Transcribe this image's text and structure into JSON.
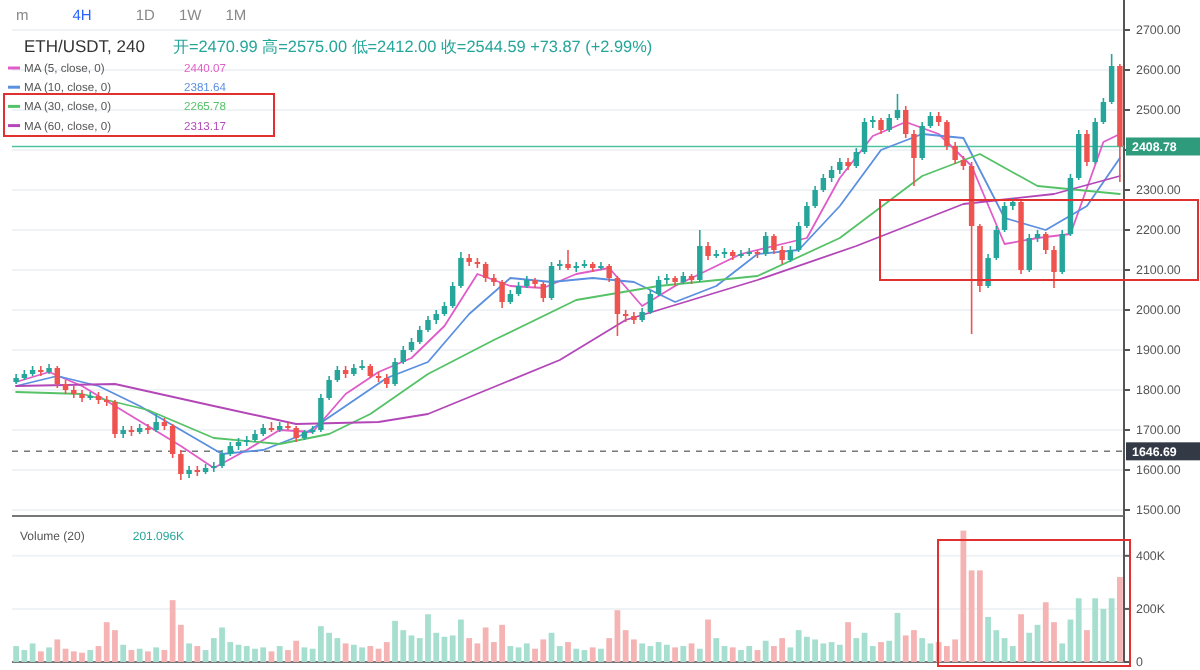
{
  "chart_data": [
    {
      "type": "candlestick",
      "title": "ETH/USDT, 240",
      "subtitle": "开=2470.99 高=2575.00 低=2412.00 收=2544.59 +73.87 (+2.99%)",
      "categories": [
        null,
        null,
        null,
        null,
        null,
        null,
        null,
        null,
        null,
        null,
        null,
        null,
        null,
        null,
        null,
        null,
        null,
        null,
        null,
        null,
        null,
        null,
        null,
        null,
        null,
        null,
        null,
        null,
        null,
        null,
        null,
        null,
        null,
        null,
        null,
        null,
        null,
        null,
        null,
        null,
        null,
        null,
        null,
        null,
        null,
        null,
        null,
        null,
        null,
        null,
        null,
        null,
        null,
        null,
        null,
        null,
        null,
        null,
        null,
        null,
        null,
        null,
        null,
        null,
        null,
        null,
        null,
        null,
        null,
        null,
        null,
        null,
        null,
        null,
        null,
        null,
        null,
        null,
        null,
        null,
        null,
        null,
        null,
        null,
        null,
        null,
        null,
        null,
        null,
        null,
        null,
        null,
        null,
        null,
        null,
        null,
        null,
        null,
        null,
        null,
        null,
        null,
        null,
        null,
        null,
        null,
        null,
        null,
        null,
        null,
        null,
        null,
        null,
        null,
        null,
        null,
        null,
        null,
        null,
        null,
        null,
        null,
        null,
        null,
        null,
        null,
        null,
        null,
        null,
        null,
        null,
        null,
        null,
        null,
        null
      ],
      "ohlc": [
        [
          1820,
          1840,
          1815,
          1830
        ],
        [
          1830,
          1850,
          1825,
          1840
        ],
        [
          1840,
          1860,
          1835,
          1850
        ],
        [
          1850,
          1860,
          1835,
          1845
        ],
        [
          1845,
          1865,
          1840,
          1855
        ],
        [
          1855,
          1860,
          1805,
          1815
        ],
        [
          1815,
          1825,
          1790,
          1800
        ],
        [
          1800,
          1810,
          1780,
          1790
        ],
        [
          1790,
          1800,
          1770,
          1780
        ],
        [
          1780,
          1795,
          1775,
          1785
        ],
        [
          1785,
          1795,
          1765,
          1775
        ],
        [
          1775,
          1785,
          1760,
          1770
        ],
        [
          1770,
          1775,
          1680,
          1690
        ],
        [
          1690,
          1710,
          1680,
          1700
        ],
        [
          1700,
          1710,
          1685,
          1695
        ],
        [
          1695,
          1715,
          1690,
          1705
        ],
        [
          1705,
          1715,
          1690,
          1700
        ],
        [
          1700,
          1740,
          1695,
          1720
        ],
        [
          1720,
          1730,
          1700,
          1710
        ],
        [
          1710,
          1715,
          1630,
          1640
        ],
        [
          1640,
          1650,
          1575,
          1590
        ],
        [
          1590,
          1610,
          1580,
          1600
        ],
        [
          1600,
          1610,
          1585,
          1595
        ],
        [
          1595,
          1615,
          1590,
          1605
        ],
        [
          1605,
          1620,
          1595,
          1610
        ],
        [
          1610,
          1650,
          1605,
          1640
        ],
        [
          1640,
          1670,
          1635,
          1660
        ],
        [
          1660,
          1680,
          1650,
          1670
        ],
        [
          1670,
          1685,
          1660,
          1675
        ],
        [
          1675,
          1700,
          1670,
          1690
        ],
        [
          1690,
          1715,
          1685,
          1705
        ],
        [
          1705,
          1720,
          1695,
          1700
        ],
        [
          1700,
          1720,
          1695,
          1710
        ],
        [
          1710,
          1720,
          1700,
          1705
        ],
        [
          1705,
          1710,
          1670,
          1680
        ],
        [
          1680,
          1700,
          1675,
          1695
        ],
        [
          1695,
          1710,
          1690,
          1700
        ],
        [
          1700,
          1790,
          1695,
          1780
        ],
        [
          1780,
          1835,
          1775,
          1825
        ],
        [
          1825,
          1860,
          1820,
          1850
        ],
        [
          1850,
          1860,
          1830,
          1840
        ],
        [
          1840,
          1865,
          1835,
          1855
        ],
        [
          1855,
          1875,
          1850,
          1860
        ],
        [
          1860,
          1865,
          1830,
          1835
        ],
        [
          1835,
          1845,
          1820,
          1830
        ],
        [
          1830,
          1840,
          1805,
          1815
        ],
        [
          1815,
          1880,
          1810,
          1870
        ],
        [
          1870,
          1910,
          1865,
          1900
        ],
        [
          1900,
          1930,
          1895,
          1920
        ],
        [
          1920,
          1960,
          1915,
          1950
        ],
        [
          1950,
          1985,
          1945,
          1975
        ],
        [
          1975,
          2000,
          1965,
          1990
        ],
        [
          1990,
          2020,
          1985,
          2010
        ],
        [
          2010,
          2070,
          2005,
          2060
        ],
        [
          2060,
          2145,
          2055,
          2130
        ],
        [
          2130,
          2140,
          2110,
          2120
        ],
        [
          2120,
          2130,
          2105,
          2115
        ],
        [
          2115,
          2120,
          2070,
          2080
        ],
        [
          2080,
          2090,
          2060,
          2070
        ],
        [
          2070,
          2075,
          2005,
          2020
        ],
        [
          2020,
          2050,
          2015,
          2040
        ],
        [
          2040,
          2070,
          2035,
          2060
        ],
        [
          2060,
          2085,
          2055,
          2075
        ],
        [
          2075,
          2080,
          2055,
          2065
        ],
        [
          2065,
          2070,
          2020,
          2030
        ],
        [
          2030,
          2120,
          2025,
          2110
        ],
        [
          2110,
          2125,
          2100,
          2115
        ],
        [
          2115,
          2150,
          2100,
          2105
        ],
        [
          2105,
          2120,
          2095,
          2110
        ],
        [
          2110,
          2125,
          2105,
          2115
        ],
        [
          2115,
          2120,
          2095,
          2105
        ],
        [
          2105,
          2120,
          2100,
          2110
        ],
        [
          2110,
          2115,
          2070,
          2080
        ],
        [
          2080,
          2085,
          1935,
          1990
        ],
        [
          1990,
          2000,
          1970,
          1985
        ],
        [
          1985,
          1995,
          1965,
          1975
        ],
        [
          1975,
          2005,
          1970,
          1995
        ],
        [
          1995,
          2050,
          1990,
          2040
        ],
        [
          2040,
          2085,
          2035,
          2075
        ],
        [
          2075,
          2090,
          2065,
          2080
        ],
        [
          2080,
          2085,
          2060,
          2070
        ],
        [
          2070,
          2095,
          2065,
          2085
        ],
        [
          2085,
          2090,
          2065,
          2075
        ],
        [
          2075,
          2200,
          2070,
          2160
        ],
        [
          2160,
          2170,
          2125,
          2135
        ],
        [
          2135,
          2150,
          2130,
          2140
        ],
        [
          2140,
          2155,
          2130,
          2145
        ],
        [
          2145,
          2150,
          2125,
          2135
        ],
        [
          2135,
          2150,
          2130,
          2140
        ],
        [
          2140,
          2155,
          2135,
          2145
        ],
        [
          2145,
          2150,
          2130,
          2140
        ],
        [
          2140,
          2195,
          2135,
          2185
        ],
        [
          2185,
          2190,
          2140,
          2150
        ],
        [
          2150,
          2160,
          2115,
          2125
        ],
        [
          2125,
          2160,
          2120,
          2150
        ],
        [
          2150,
          2220,
          2145,
          2210
        ],
        [
          2210,
          2270,
          2205,
          2260
        ],
        [
          2260,
          2310,
          2255,
          2300
        ],
        [
          2300,
          2340,
          2295,
          2330
        ],
        [
          2330,
          2360,
          2320,
          2350
        ],
        [
          2350,
          2380,
          2340,
          2370
        ],
        [
          2370,
          2380,
          2350,
          2360
        ],
        [
          2360,
          2405,
          2355,
          2395
        ],
        [
          2395,
          2480,
          2390,
          2470
        ],
        [
          2470,
          2485,
          2455,
          2475
        ],
        [
          2475,
          2480,
          2440,
          2450
        ],
        [
          2450,
          2490,
          2445,
          2480
        ],
        [
          2480,
          2540,
          2475,
          2500
        ],
        [
          2500,
          2510,
          2430,
          2440
        ],
        [
          2440,
          2450,
          2310,
          2380
        ],
        [
          2380,
          2470,
          2375,
          2460
        ],
        [
          2460,
          2495,
          2455,
          2485
        ],
        [
          2485,
          2495,
          2460,
          2470
        ],
        [
          2470,
          2475,
          2400,
          2410
        ],
        [
          2410,
          2420,
          2365,
          2375
        ],
        [
          2375,
          2385,
          2350,
          2360
        ],
        [
          2360,
          2370,
          1940,
          2210
        ],
        [
          2210,
          2215,
          2045,
          2060
        ],
        [
          2060,
          2140,
          2055,
          2130
        ],
        [
          2130,
          2210,
          2125,
          2200
        ],
        [
          2200,
          2270,
          2195,
          2260
        ],
        [
          2260,
          2280,
          2250,
          2270
        ],
        [
          2270,
          2275,
          2090,
          2100
        ],
        [
          2100,
          2190,
          2095,
          2180
        ],
        [
          2180,
          2200,
          2170,
          2190
        ],
        [
          2190,
          2195,
          2140,
          2150
        ],
        [
          2150,
          2160,
          2055,
          2095
        ],
        [
          2095,
          2200,
          2090,
          2190
        ],
        [
          2190,
          2340,
          2185,
          2330
        ],
        [
          2330,
          2450,
          2325,
          2440
        ],
        [
          2440,
          2450,
          2360,
          2370
        ],
        [
          2370,
          2480,
          2365,
          2470
        ],
        [
          2470,
          2530,
          2465,
          2520
        ],
        [
          2520,
          2640,
          2515,
          2610
        ],
        [
          2610,
          2615,
          2320,
          2409
        ]
      ],
      "series": [
        {
          "name": "MA (5, close, 0)",
          "type": "line",
          "color": "#e05cc8",
          "values": [
            1820,
            null,
            null,
            null,
            1845,
            null,
            null,
            null,
            1810,
            null,
            null,
            null,
            1760,
            null,
            null,
            null,
            1710,
            null,
            null,
            null,
            1660,
            null,
            null,
            null,
            1605,
            null,
            null,
            null,
            1650,
            null,
            null,
            null,
            1700,
            null,
            null,
            null,
            1695,
            null,
            null,
            null,
            1790,
            null,
            null,
            null,
            1845,
            null,
            null,
            null,
            1880,
            null,
            null,
            null,
            1960,
            null,
            null,
            null,
            2090,
            null,
            null,
            null,
            2060,
            null,
            null,
            null,
            2055,
            null,
            null,
            null,
            2090,
            null,
            null,
            null,
            2105,
            null,
            null,
            null,
            2010,
            null,
            null,
            null,
            2060,
            null,
            null,
            null,
            2100,
            null,
            null,
            null,
            2140,
            null,
            null,
            null,
            2160,
            null,
            null,
            null,
            2180,
            null,
            null,
            null,
            2330,
            null,
            null,
            null,
            2435,
            null,
            null,
            null,
            2470,
            null,
            null,
            null,
            2440,
            null,
            null,
            null,
            2360,
            null,
            null,
            null,
            2165,
            null,
            null,
            null,
            2180,
            null,
            null,
            null,
            2190,
            null,
            null,
            null,
            2420,
            null,
            2440
          ]
        },
        {
          "name": "MA (10, close, 0)",
          "type": "line",
          "color": "#5b8fe0",
          "values": [
            1810,
            null,
            null,
            null,
            null,
            1835,
            null,
            null,
            null,
            null,
            1810,
            null,
            null,
            null,
            null,
            1760,
            null,
            null,
            null,
            null,
            1700,
            null,
            null,
            null,
            null,
            1640,
            null,
            null,
            null,
            null,
            1650,
            null,
            null,
            null,
            null,
            1690,
            null,
            null,
            null,
            null,
            1760,
            null,
            null,
            null,
            null,
            1830,
            null,
            null,
            null,
            null,
            1870,
            null,
            null,
            null,
            null,
            1990,
            null,
            null,
            null,
            null,
            2080,
            null,
            null,
            null,
            null,
            2070,
            null,
            null,
            null,
            null,
            2080,
            null,
            null,
            null,
            null,
            2070,
            null,
            null,
            null,
            null,
            2020,
            null,
            null,
            null,
            null,
            2060,
            null,
            null,
            null,
            null,
            2140,
            null,
            null,
            null,
            null,
            2150,
            null,
            null,
            null,
            null,
            2260,
            null,
            null,
            null,
            null,
            2400,
            null,
            null,
            null,
            null,
            2440,
            null,
            null,
            null,
            null,
            2430,
            null,
            null,
            null,
            null,
            2230,
            null,
            null,
            null,
            null,
            2200,
            null,
            null,
            null,
            null,
            2260,
            null,
            null,
            null,
            2380
          ]
        },
        {
          "name": "MA (30, close, 0)",
          "type": "line",
          "color": "#55c267",
          "values": [
            1795,
            null,
            null,
            null,
            null,
            null,
            null,
            null,
            1790,
            null,
            null,
            null,
            null,
            null,
            null,
            null,
            1750,
            null,
            null,
            null,
            null,
            null,
            null,
            null,
            1680,
            null,
            null,
            null,
            null,
            null,
            null,
            null,
            1665,
            null,
            null,
            null,
            null,
            null,
            1690,
            null,
            null,
            null,
            null,
            1740,
            null,
            null,
            null,
            null,
            null,
            null,
            1840,
            null,
            null,
            null,
            null,
            null,
            null,
            null,
            1925,
            null,
            null,
            null,
            null,
            null,
            null,
            null,
            null,
            null,
            2025,
            null,
            null,
            null,
            null,
            null,
            null,
            null,
            null,
            null,
            2060,
            null,
            null,
            null,
            null,
            null,
            null,
            null,
            null,
            null,
            null,
            null,
            2085,
            null,
            null,
            null,
            null,
            null,
            null,
            null,
            null,
            null,
            2180,
            null,
            null,
            null,
            null,
            null,
            null,
            null,
            null,
            null,
            2335,
            null,
            null,
            null,
            null,
            null,
            null,
            2390,
            null,
            null,
            null,
            null,
            null,
            null,
            2310,
            null,
            null,
            null,
            null,
            null,
            null,
            null,
            null,
            null,
            2290
          ]
        },
        {
          "name": "MA (60, close, 0)",
          "type": "line",
          "color": "#b347b8",
          "values": [
            1810,
            null,
            null,
            null,
            null,
            null,
            null,
            null,
            null,
            null,
            null,
            null,
            1815,
            null,
            null,
            null,
            null,
            null,
            null,
            null,
            null,
            null,
            null,
            null,
            1760,
            null,
            null,
            null,
            null,
            null,
            null,
            null,
            null,
            null,
            1715,
            null,
            null,
            null,
            null,
            null,
            null,
            null,
            null,
            null,
            1720,
            null,
            null,
            null,
            null,
            null,
            1740,
            null,
            null,
            null,
            null,
            null,
            null,
            null,
            null,
            null,
            null,
            null,
            null,
            null,
            null,
            null,
            1875,
            null,
            null,
            null,
            null,
            null,
            null,
            null,
            1975,
            null,
            null,
            null,
            null,
            null,
            null,
            null,
            null,
            null,
            null,
            null,
            null,
            null,
            null,
            null,
            2075,
            null,
            null,
            null,
            null,
            null,
            null,
            null,
            null,
            null,
            null,
            null,
            2160,
            null,
            null,
            null,
            null,
            null,
            null,
            null,
            null,
            null,
            null,
            null,
            null,
            2265,
            null,
            null,
            null,
            null,
            null,
            null,
            null,
            null,
            null,
            null,
            2290,
            null,
            null,
            null,
            null,
            null,
            null,
            null,
            2335
          ]
        }
      ],
      "ylim": [
        1485,
        2775
      ],
      "yticks": [
        {
          "value": 1500,
          "label": "1500.00"
        },
        {
          "value": 1600,
          "label": "1600.00"
        },
        {
          "value": 1700,
          "label": "1700.00"
        },
        {
          "value": 1800,
          "label": "1800.00"
        },
        {
          "value": 1900,
          "label": "1900.00"
        },
        {
          "value": 2000,
          "label": "2000.00"
        },
        {
          "value": 2100,
          "label": "2100.00"
        },
        {
          "value": 2200,
          "label": "2200.00"
        },
        {
          "value": 2300,
          "label": "2300.00"
        },
        {
          "value": 2400,
          "label": null
        },
        {
          "value": 2500,
          "label": "2500.00"
        },
        {
          "value": 2600,
          "label": "2600.00"
        },
        {
          "value": 2700,
          "label": "2700.00"
        }
      ],
      "grid": "y",
      "legend": "top left",
      "tick_labels": "y",
      "ref_lines": [
        {
          "axis": "y",
          "value": 2408.78,
          "label": "2408.78",
          "color": "#4fc3a1",
          "line_style": "solid"
        },
        {
          "axis": "y",
          "value": 1646.69,
          "label": "1646.69",
          "color": "#777777",
          "line_style": "dashed"
        }
      ],
      "annotations": [
        "2440.07",
        "2381.64",
        "2265.78",
        "2313.17",
        "m",
        "4H",
        "1D",
        "1W",
        "1M"
      ]
    },
    {
      "type": "bar",
      "title": "Volume (20)",
      "categories": [
        null,
        null,
        null,
        null,
        null,
        null,
        null,
        null,
        null,
        null,
        null,
        null,
        null,
        null,
        null,
        null,
        null,
        null,
        null,
        null,
        null,
        null,
        null,
        null,
        null,
        null,
        null,
        null,
        null,
        null,
        null,
        null,
        null,
        null,
        null,
        null,
        null,
        null,
        null,
        null,
        null,
        null,
        null,
        null,
        null,
        null,
        null,
        null,
        null,
        null,
        null,
        null,
        null,
        null,
        null,
        null,
        null,
        null,
        null,
        null,
        null,
        null,
        null,
        null,
        null,
        null,
        null,
        null,
        null,
        null,
        null,
        null,
        null,
        null,
        null,
        null,
        null,
        null,
        null,
        null,
        null,
        null,
        null,
        null,
        null,
        null,
        null,
        null,
        null,
        null,
        null,
        null,
        null,
        null,
        null,
        null,
        null,
        null,
        null,
        null,
        null,
        null,
        null,
        null,
        null,
        null,
        null,
        null,
        null,
        null,
        null,
        null,
        null,
        null,
        null,
        null,
        null,
        null,
        null,
        null,
        null,
        null,
        null,
        null,
        null,
        null,
        null,
        null,
        null,
        null,
        null,
        null,
        null,
        null,
        null
      ],
      "values": [
        60,
        45,
        70,
        40,
        55,
        85,
        50,
        40,
        35,
        45,
        60,
        150,
        120,
        65,
        45,
        50,
        40,
        55,
        45,
        233,
        140,
        70,
        60,
        45,
        90,
        130,
        75,
        65,
        60,
        50,
        55,
        40,
        60,
        45,
        80,
        55,
        50,
        135,
        110,
        90,
        70,
        65,
        55,
        60,
        50,
        75,
        155,
        120,
        100,
        90,
        180,
        110,
        95,
        100,
        160,
        90,
        70,
        130,
        75,
        140,
        60,
        55,
        70,
        50,
        85,
        110,
        60,
        75,
        50,
        45,
        55,
        50,
        90,
        195,
        120,
        85,
        70,
        60,
        75,
        65,
        55,
        60,
        70,
        50,
        160,
        90,
        60,
        55,
        45,
        60,
        45,
        80,
        60,
        90,
        55,
        120,
        95,
        85,
        70,
        75,
        65,
        150,
        90,
        110,
        60,
        75,
        80,
        185,
        100,
        120,
        90,
        70,
        75,
        60,
        85,
        495,
        345,
        345,
        170,
        120,
        90,
        60,
        180,
        110,
        140,
        225,
        150,
        70,
        160,
        240,
        120,
        240,
        200,
        240,
        320
      ],
      "colors": [
        "#a6dfcf",
        "#a6dfcf",
        "#a6dfcf",
        "#f5b3b3",
        "#a6dfcf",
        "#f5b3b3",
        "#f5b3b3",
        "#f5b3b3",
        "#f5b3b3",
        "#a6dfcf",
        "#f5b3b3",
        "#f5b3b3",
        "#f5b3b3",
        "#a6dfcf",
        "#f5b3b3",
        "#a6dfcf",
        "#f5b3b3",
        "#a6dfcf",
        "#f5b3b3",
        "#f5b3b3",
        "#f5b3b3",
        "#a6dfcf",
        "#f5b3b3",
        "#a6dfcf",
        "#a6dfcf",
        "#a6dfcf",
        "#a6dfcf",
        "#a6dfcf",
        "#a6dfcf",
        "#a6dfcf",
        "#a6dfcf",
        "#f5b3b3",
        "#a6dfcf",
        "#f5b3b3",
        "#f5b3b3",
        "#a6dfcf",
        "#a6dfcf",
        "#a6dfcf",
        "#a6dfcf",
        "#a6dfcf",
        "#f5b3b3",
        "#a6dfcf",
        "#a6dfcf",
        "#f5b3b3",
        "#f5b3b3",
        "#f5b3b3",
        "#a6dfcf",
        "#a6dfcf",
        "#a6dfcf",
        "#a6dfcf",
        "#a6dfcf",
        "#a6dfcf",
        "#a6dfcf",
        "#a6dfcf",
        "#a6dfcf",
        "#f5b3b3",
        "#f5b3b3",
        "#f5b3b3",
        "#f5b3b3",
        "#f5b3b3",
        "#a6dfcf",
        "#a6dfcf",
        "#a6dfcf",
        "#f5b3b3",
        "#f5b3b3",
        "#a6dfcf",
        "#a6dfcf",
        "#f5b3b3",
        "#a6dfcf",
        "#a6dfcf",
        "#f5b3b3",
        "#a6dfcf",
        "#f5b3b3",
        "#f5b3b3",
        "#f5b3b3",
        "#f5b3b3",
        "#a6dfcf",
        "#a6dfcf",
        "#a6dfcf",
        "#a6dfcf",
        "#f5b3b3",
        "#a6dfcf",
        "#f5b3b3",
        "#a6dfcf",
        "#f5b3b3",
        "#a6dfcf",
        "#a6dfcf",
        "#f5b3b3",
        "#a6dfcf",
        "#a6dfcf",
        "#f5b3b3",
        "#a6dfcf",
        "#f5b3b3",
        "#f5b3b3",
        "#a6dfcf",
        "#a6dfcf",
        "#a6dfcf",
        "#a6dfcf",
        "#a6dfcf",
        "#a6dfcf",
        "#a6dfcf",
        "#f5b3b3",
        "#a6dfcf",
        "#a6dfcf",
        "#a6dfcf",
        "#f5b3b3",
        "#a6dfcf",
        "#a6dfcf",
        "#f5b3b3",
        "#f5b3b3",
        "#a6dfcf",
        "#a6dfcf",
        "#f5b3b3",
        "#f5b3b3",
        "#f5b3b3",
        "#f5b3b3",
        "#f5b3b3",
        "#f5b3b3",
        "#a6dfcf",
        "#a6dfcf",
        "#a6dfcf",
        "#a6dfcf",
        "#f5b3b3",
        "#a6dfcf",
        "#a6dfcf",
        "#f5b3b3",
        "#f5b3b3",
        "#a6dfcf",
        "#a6dfcf",
        "#a6dfcf",
        "#f5b3b3",
        "#a6dfcf",
        "#a6dfcf",
        "#a6dfcf",
        "#f5b3b3"
      ],
      "ylim": [
        0,
        550
      ],
      "yticks": [
        {
          "value": 0,
          "label": "0"
        },
        {
          "value": 200,
          "label": "200K"
        },
        {
          "value": 400,
          "label": "400K"
        }
      ],
      "grid": "y",
      "tick_labels": "y",
      "annotations": [
        "201.096K"
      ]
    }
  ]
}
